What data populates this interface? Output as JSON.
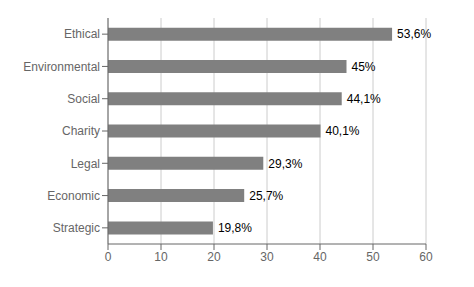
{
  "chart_data": {
    "type": "bar",
    "orientation": "horizontal",
    "categories": [
      "Strategic",
      "Economic",
      "Legal",
      "Charity",
      "Social",
      "Environmental",
      "Ethical"
    ],
    "values": [
      19.8,
      25.7,
      29.3,
      40.1,
      44.1,
      45.0,
      53.6
    ],
    "value_labels": [
      "19,8%",
      "25,7%",
      "29,3%",
      "40,1%",
      "44,1%",
      "45%",
      "53,6%"
    ],
    "data_labels": true,
    "color": "#808080",
    "xlim": [
      0,
      60
    ],
    "xticks": [
      0,
      10,
      20,
      30,
      40,
      50,
      60
    ],
    "grid": true
  }
}
